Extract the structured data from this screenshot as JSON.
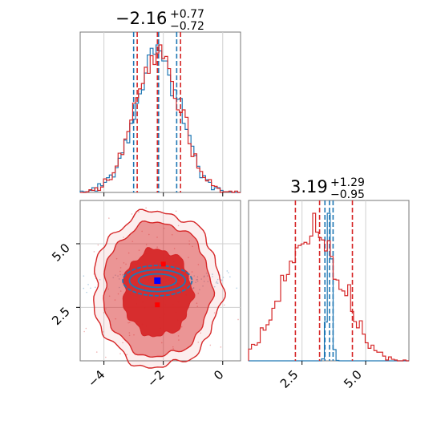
{
  "chart_data": [
    {
      "type": "histogram",
      "panel": "top-left",
      "x_range": [
        -4.8,
        0.6
      ],
      "xticks": [
        -4,
        -2,
        0
      ],
      "title": {
        "value": "−2.16",
        "plus": "+0.77",
        "minus": "−0.72"
      },
      "series": [
        {
          "color": "#1f77b4",
          "quantile_lines": [
            -3.0,
            -2.16,
            -1.55
          ],
          "peak": -2.2,
          "width": 0.75
        },
        {
          "color": "#d62728",
          "quantile_lines": [
            -2.88,
            -2.2,
            -1.42
          ],
          "peak": -2.2,
          "width": 0.75
        }
      ]
    },
    {
      "type": "histogram",
      "panel": "bottom-right",
      "x_range": [
        0.4,
        6.7
      ],
      "xticks": [
        2.5,
        5.0
      ],
      "xtick_labels": [
        "2.5",
        "5.0"
      ],
      "title": {
        "value": "3.19",
        "plus": "+1.29",
        "minus": "−0.95"
      },
      "series": [
        {
          "color": "#1f77b4",
          "quantile_lines": [
            3.4,
            3.58,
            3.72
          ],
          "peak": 3.58,
          "width": 0.08
        },
        {
          "color": "#d62728",
          "quantile_lines": [
            2.24,
            3.19,
            4.48
          ],
          "peak": 2.9,
          "width": 1.1
        }
      ]
    },
    {
      "type": "contour",
      "panel": "bottom-left",
      "x_range": [
        -4.8,
        0.6
      ],
      "y_range": [
        0.4,
        6.7
      ],
      "xticks": [
        -4,
        -2,
        0
      ],
      "yticks": [
        2.5,
        5.0
      ],
      "ytick_labels": [
        "2.5",
        "5.0"
      ],
      "series": [
        {
          "color": "#d62728",
          "center": [
            -2.2,
            3.2
          ],
          "spread": [
            1.1,
            1.7
          ]
        },
        {
          "color": "#1f77b4",
          "center": [
            -2.2,
            3.55
          ],
          "spread": [
            1.6,
            0.15
          ]
        }
      ],
      "truth_marker": {
        "color": "#0000ff",
        "x": -2.2,
        "y": 3.55
      }
    }
  ]
}
